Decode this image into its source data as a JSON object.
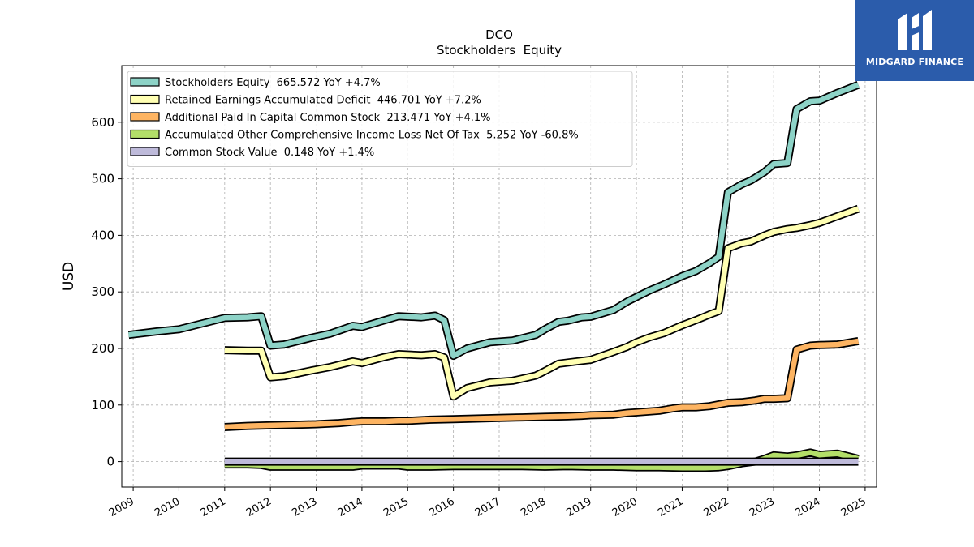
{
  "chart_data": {
    "type": "line",
    "ticker": "DCO",
    "title": "Stockholders  Equity",
    "ylabel": "USD",
    "xlabel": "",
    "xlim": [
      2008.75,
      2025.25
    ],
    "ylim": [
      -45,
      700
    ],
    "grid": true,
    "legend_position": "top-left",
    "x_ticks": [
      2009,
      2010,
      2011,
      2012,
      2013,
      2014,
      2015,
      2016,
      2017,
      2018,
      2019,
      2020,
      2021,
      2022,
      2023,
      2024,
      2025
    ],
    "y_ticks": [
      0,
      100,
      200,
      300,
      400,
      500,
      600
    ],
    "series": [
      {
        "name": "Stockholders Equity  665.572 YoY +4.7%",
        "color": "#8dd3c7",
        "points": [
          [
            2008.9,
            224
          ],
          [
            2009.5,
            230
          ],
          [
            2010.0,
            234
          ],
          [
            2011.0,
            254
          ],
          [
            2011.5,
            255
          ],
          [
            2011.8,
            257
          ],
          [
            2012.0,
            205
          ],
          [
            2012.3,
            207
          ],
          [
            2012.9,
            219
          ],
          [
            2013.3,
            226
          ],
          [
            2013.8,
            240
          ],
          [
            2014.0,
            238
          ],
          [
            2014.5,
            250
          ],
          [
            2014.8,
            257
          ],
          [
            2015.3,
            255
          ],
          [
            2015.6,
            258
          ],
          [
            2015.8,
            250
          ],
          [
            2016.0,
            187
          ],
          [
            2016.3,
            200
          ],
          [
            2016.8,
            211
          ],
          [
            2017.3,
            214
          ],
          [
            2017.8,
            224
          ],
          [
            2018.0,
            234
          ],
          [
            2018.3,
            247
          ],
          [
            2018.5,
            249
          ],
          [
            2018.8,
            255
          ],
          [
            2019.0,
            256
          ],
          [
            2019.5,
            268
          ],
          [
            2019.8,
            283
          ],
          [
            2020.0,
            291
          ],
          [
            2020.3,
            303
          ],
          [
            2020.6,
            313
          ],
          [
            2021.0,
            328
          ],
          [
            2021.3,
            337
          ],
          [
            2021.6,
            351
          ],
          [
            2021.8,
            362
          ],
          [
            2022.0,
            476
          ],
          [
            2022.3,
            490
          ],
          [
            2022.5,
            497
          ],
          [
            2022.8,
            512
          ],
          [
            2023.0,
            526
          ],
          [
            2023.3,
            528
          ],
          [
            2023.5,
            623
          ],
          [
            2023.8,
            637
          ],
          [
            2024.0,
            638
          ],
          [
            2024.4,
            652
          ],
          [
            2024.85,
            666
          ]
        ]
      },
      {
        "name": "Retained Earnings Accumulated Deficit  446.701 YoY +7.2%",
        "color": "#ffffb3",
        "points": [
          [
            2011.0,
            197
          ],
          [
            2011.5,
            196
          ],
          [
            2011.8,
            196
          ],
          [
            2012.0,
            149
          ],
          [
            2012.3,
            151
          ],
          [
            2012.9,
            161
          ],
          [
            2013.3,
            167
          ],
          [
            2013.8,
            177
          ],
          [
            2014.0,
            174
          ],
          [
            2014.5,
            185
          ],
          [
            2014.8,
            190
          ],
          [
            2015.3,
            188
          ],
          [
            2015.6,
            190
          ],
          [
            2015.8,
            184
          ],
          [
            2016.0,
            115
          ],
          [
            2016.3,
            130
          ],
          [
            2016.8,
            140
          ],
          [
            2017.3,
            143
          ],
          [
            2017.8,
            152
          ],
          [
            2018.0,
            160
          ],
          [
            2018.3,
            173
          ],
          [
            2018.5,
            175
          ],
          [
            2018.8,
            178
          ],
          [
            2019.0,
            180
          ],
          [
            2019.5,
            194
          ],
          [
            2019.8,
            203
          ],
          [
            2020.0,
            211
          ],
          [
            2020.3,
            220
          ],
          [
            2020.6,
            227
          ],
          [
            2021.0,
            241
          ],
          [
            2021.3,
            250
          ],
          [
            2021.6,
            260
          ],
          [
            2021.8,
            266
          ],
          [
            2022.0,
            377
          ],
          [
            2022.3,
            386
          ],
          [
            2022.5,
            389
          ],
          [
            2022.8,
            400
          ],
          [
            2023.0,
            406
          ],
          [
            2023.3,
            411
          ],
          [
            2023.5,
            413
          ],
          [
            2023.8,
            418
          ],
          [
            2024.0,
            422
          ],
          [
            2024.4,
            434
          ],
          [
            2024.85,
            447
          ]
        ]
      },
      {
        "name": "Additional Paid In Capital Common Stock  213.471 YoY +4.1%",
        "color": "#fdb462",
        "points": [
          [
            2011.0,
            61
          ],
          [
            2011.5,
            63
          ],
          [
            2012.0,
            64
          ],
          [
            2012.5,
            65
          ],
          [
            2013.0,
            66
          ],
          [
            2013.5,
            68
          ],
          [
            2013.8,
            70
          ],
          [
            2014.0,
            71
          ],
          [
            2014.5,
            71
          ],
          [
            2014.8,
            72
          ],
          [
            2015.0,
            72
          ],
          [
            2015.5,
            74
          ],
          [
            2016.0,
            75
          ],
          [
            2016.5,
            76
          ],
          [
            2017.0,
            77
          ],
          [
            2017.5,
            78
          ],
          [
            2018.0,
            79
          ],
          [
            2018.5,
            80
          ],
          [
            2018.8,
            81
          ],
          [
            2019.0,
            82
          ],
          [
            2019.5,
            83
          ],
          [
            2019.8,
            86
          ],
          [
            2020.0,
            87
          ],
          [
            2020.5,
            90
          ],
          [
            2020.8,
            94
          ],
          [
            2021.0,
            96
          ],
          [
            2021.3,
            96
          ],
          [
            2021.6,
            98
          ],
          [
            2021.8,
            101
          ],
          [
            2022.0,
            104
          ],
          [
            2022.3,
            105
          ],
          [
            2022.6,
            108
          ],
          [
            2022.8,
            111
          ],
          [
            2023.0,
            111
          ],
          [
            2023.3,
            112
          ],
          [
            2023.5,
            198
          ],
          [
            2023.8,
            205
          ],
          [
            2024.0,
            206
          ],
          [
            2024.4,
            207
          ],
          [
            2024.85,
            213
          ]
        ]
      },
      {
        "name": "Accumulated Other Comprehensive Income Loss Net Of Tax  5.252 YoY -60.8%",
        "color": "#b3de69",
        "points": [
          [
            2011.0,
            -5
          ],
          [
            2011.5,
            -5
          ],
          [
            2011.8,
            -6
          ],
          [
            2012.0,
            -9
          ],
          [
            2012.5,
            -9
          ],
          [
            2013.0,
            -9
          ],
          [
            2013.8,
            -9
          ],
          [
            2014.0,
            -7
          ],
          [
            2014.8,
            -7
          ],
          [
            2015.0,
            -9
          ],
          [
            2015.5,
            -9
          ],
          [
            2016.0,
            -8
          ],
          [
            2016.5,
            -8
          ],
          [
            2017.0,
            -8
          ],
          [
            2017.5,
            -8
          ],
          [
            2018.0,
            -9
          ],
          [
            2018.5,
            -8
          ],
          [
            2019.0,
            -9
          ],
          [
            2019.5,
            -9
          ],
          [
            2020.0,
            -10
          ],
          [
            2020.5,
            -10
          ],
          [
            2021.0,
            -11
          ],
          [
            2021.5,
            -11
          ],
          [
            2021.8,
            -10
          ],
          [
            2022.0,
            -8
          ],
          [
            2022.3,
            -3
          ],
          [
            2022.6,
            0
          ],
          [
            2022.8,
            5
          ],
          [
            2023.0,
            11
          ],
          [
            2023.3,
            9
          ],
          [
            2023.5,
            11
          ],
          [
            2023.8,
            16
          ],
          [
            2024.0,
            12
          ],
          [
            2024.4,
            14
          ],
          [
            2024.85,
            5
          ]
        ]
      },
      {
        "name": "Common Stock Value  0.148 YoY +1.4%",
        "color": "#bebada",
        "points": [
          [
            2011.0,
            0
          ],
          [
            2024.85,
            0
          ]
        ]
      }
    ]
  },
  "logo": {
    "name": "MIDGARD FINANCE",
    "bg_color": "#2b5cab"
  }
}
